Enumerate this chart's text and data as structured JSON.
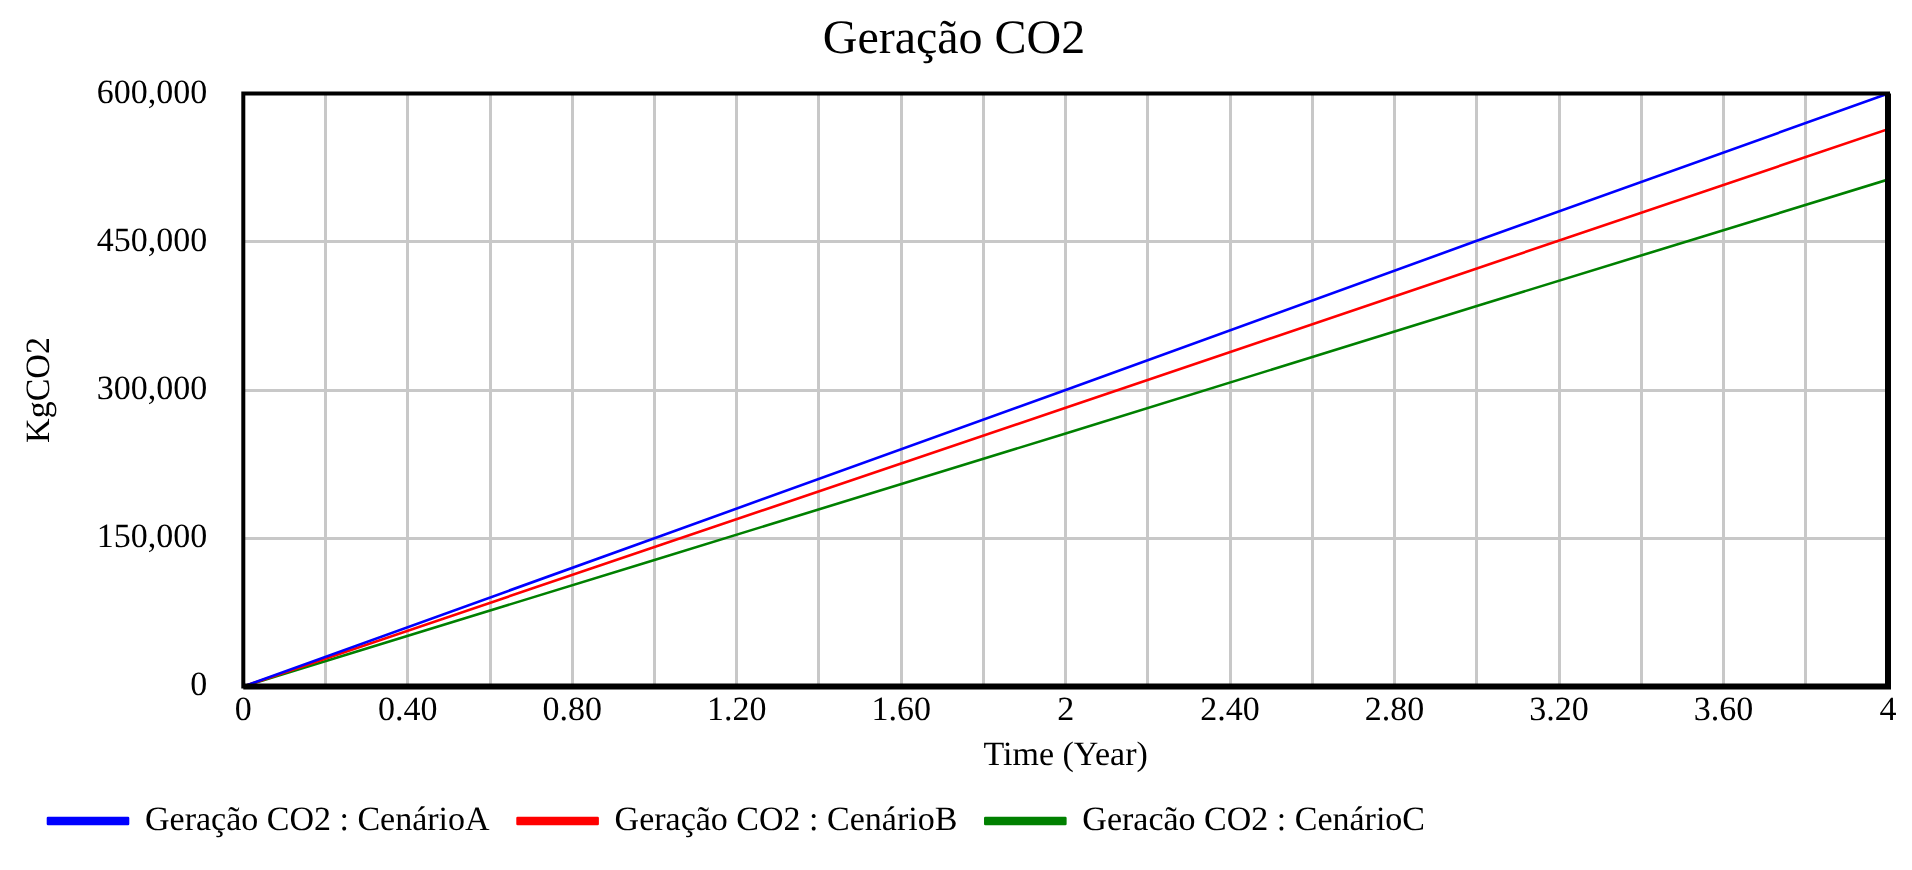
{
  "chart_data": {
    "type": "line",
    "title": "Geração CO2",
    "xlabel": "Time (Year)",
    "ylabel": "KgCO2",
    "x": [
      0,
      1,
      2,
      3,
      4
    ],
    "xlim": [
      0,
      4
    ],
    "xticks": [
      0,
      {
        "value": 0.2,
        "label": null
      },
      "0.40",
      {
        "value": 0.6,
        "label": null
      },
      "0.80",
      {
        "value": 1,
        "label": null
      },
      "1.20",
      {
        "value": 1.4,
        "label": null
      },
      "1.60",
      {
        "value": 1.8,
        "label": null
      },
      2,
      {
        "value": 2.2,
        "label": null
      },
      "2.40",
      {
        "value": 2.6,
        "label": null
      },
      "2.80",
      {
        "value": 3,
        "label": null
      },
      "3.20",
      {
        "value": 3.4,
        "label": null
      },
      "3.60",
      {
        "value": 3.8,
        "label": null
      },
      4
    ],
    "ylim": [
      0,
      600000
    ],
    "yticks": [
      {
        "value": 0,
        "label": "0"
      },
      {
        "value": 150000,
        "label": "150,000"
      },
      {
        "value": 300000,
        "label": "300,000"
      },
      {
        "value": 450000,
        "label": "450,000"
      },
      {
        "value": 600000,
        "label": "600,000"
      }
    ],
    "grid": true,
    "legend": "bottom",
    "marker": "none",
    "line_style": "solid",
    "series": [
      {
        "name": "Geração CO2 : CenárioA",
        "color": "#0000ff",
        "values": [
          0,
          150000,
          300000,
          451000,
          600000
        ]
      },
      {
        "name": "Geração CO2 : CenárioB",
        "color": "#ff0000",
        "values": [
          0,
          141000,
          282000,
          423000,
          564000
        ]
      },
      {
        "name": "Geracão CO2 : CenárioC",
        "color": "#008000",
        "values": [
          0,
          128000,
          256000,
          385000,
          513000
        ]
      }
    ]
  }
}
